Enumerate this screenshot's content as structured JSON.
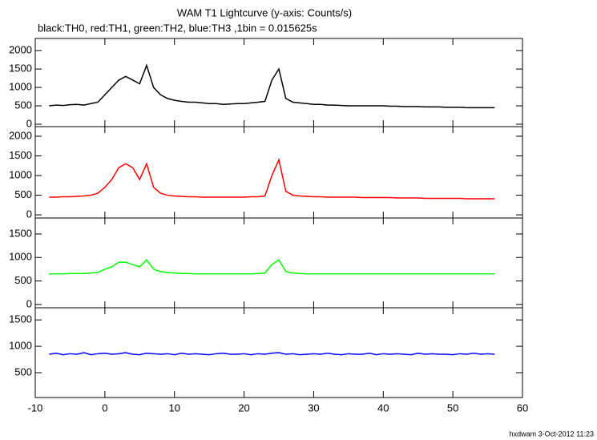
{
  "title": "WAM T1 Lightcurve (y-axis: Counts/s)",
  "subtitle": "black:TH0, red:TH1, green:TH2, blue:TH3 ,1bin = 0.015625s",
  "footer": "hxdwam  3-Oct-2012 11:23",
  "chart_data": [
    {
      "type": "line",
      "xlim": [
        -10,
        60
      ],
      "ylim": [
        -65,
        2330
      ],
      "yticks": [
        0,
        500,
        1000,
        1500,
        2000
      ],
      "x": [
        -8,
        -7,
        -6,
        -5,
        -4,
        -3,
        -2,
        -1,
        0,
        1,
        2,
        3,
        4,
        5,
        6,
        7,
        8,
        9,
        10,
        11,
        12,
        13,
        14,
        15,
        16,
        17,
        18,
        19,
        20,
        21,
        22,
        23,
        24,
        25,
        26,
        27,
        28,
        29,
        30,
        31,
        32,
        33,
        34,
        35,
        36,
        37,
        38,
        39,
        40,
        41,
        42,
        43,
        44,
        45,
        46,
        47,
        48,
        49,
        50,
        51,
        52,
        53,
        54,
        55,
        56
      ],
      "series": [
        {
          "name": "TH0",
          "color": "#000000",
          "values": [
            500,
            520,
            510,
            530,
            540,
            520,
            560,
            600,
            800,
            1000,
            1200,
            1300,
            1200,
            1100,
            1600,
            1000,
            800,
            700,
            650,
            620,
            600,
            600,
            580,
            560,
            560,
            540,
            550,
            560,
            560,
            580,
            600,
            620,
            1200,
            1500,
            700,
            600,
            580,
            560,
            540,
            540,
            520,
            520,
            510,
            500,
            500,
            500,
            500,
            500,
            500,
            490,
            490,
            480,
            480,
            480,
            470,
            470,
            470,
            460,
            460,
            460,
            450,
            450,
            450,
            450,
            450
          ]
        }
      ]
    },
    {
      "type": "line",
      "xlim": [
        -10,
        60
      ],
      "ylim": [
        -80,
        2245
      ],
      "yticks": [
        0,
        500,
        1000,
        1500,
        2000
      ],
      "x": [
        -8,
        -7,
        -6,
        -5,
        -4,
        -3,
        -2,
        -1,
        0,
        1,
        2,
        3,
        4,
        5,
        6,
        7,
        8,
        9,
        10,
        11,
        12,
        13,
        14,
        15,
        16,
        17,
        18,
        19,
        20,
        21,
        22,
        23,
        24,
        25,
        26,
        27,
        28,
        29,
        30,
        31,
        32,
        33,
        34,
        35,
        36,
        37,
        38,
        39,
        40,
        41,
        42,
        43,
        44,
        45,
        46,
        47,
        48,
        49,
        50,
        51,
        52,
        53,
        54,
        55,
        56
      ],
      "series": [
        {
          "name": "TH1",
          "color": "#ff0000",
          "values": [
            450,
            450,
            460,
            460,
            470,
            480,
            500,
            550,
            700,
            900,
            1200,
            1300,
            1200,
            900,
            1300,
            700,
            550,
            500,
            480,
            470,
            460,
            460,
            450,
            450,
            450,
            450,
            450,
            450,
            450,
            460,
            460,
            480,
            1000,
            1400,
            600,
            500,
            480,
            470,
            460,
            460,
            450,
            450,
            450,
            450,
            450,
            440,
            440,
            440,
            440,
            440,
            430,
            430,
            430,
            430,
            420,
            420,
            420,
            420,
            420,
            420,
            410,
            410,
            410,
            410,
            410
          ]
        }
      ]
    },
    {
      "type": "line",
      "xlim": [
        -10,
        60
      ],
      "ylim": [
        -70,
        1840
      ],
      "yticks": [
        0,
        500,
        1000,
        1500
      ],
      "x": [
        -8,
        -7,
        -6,
        -5,
        -4,
        -3,
        -2,
        -1,
        0,
        1,
        2,
        3,
        4,
        5,
        6,
        7,
        8,
        9,
        10,
        11,
        12,
        13,
        14,
        15,
        16,
        17,
        18,
        19,
        20,
        21,
        22,
        23,
        24,
        25,
        26,
        27,
        28,
        29,
        30,
        31,
        32,
        33,
        34,
        35,
        36,
        37,
        38,
        39,
        40,
        41,
        42,
        43,
        44,
        45,
        46,
        47,
        48,
        49,
        50,
        51,
        52,
        53,
        54,
        55,
        56
      ],
      "series": [
        {
          "name": "TH2",
          "color": "#00ff00",
          "values": [
            650,
            650,
            650,
            660,
            660,
            660,
            670,
            680,
            750,
            800,
            900,
            900,
            850,
            800,
            950,
            750,
            700,
            680,
            670,
            660,
            660,
            650,
            650,
            650,
            650,
            650,
            650,
            650,
            650,
            650,
            660,
            670,
            850,
            950,
            700,
            670,
            660,
            650,
            650,
            650,
            650,
            650,
            650,
            650,
            650,
            650,
            650,
            650,
            650,
            650,
            650,
            650,
            650,
            650,
            650,
            650,
            650,
            650,
            650,
            650,
            650,
            650,
            650,
            650,
            650
          ]
        }
      ]
    },
    {
      "type": "line",
      "xlim": [
        -10,
        60
      ],
      "ylim": [
        30,
        1730
      ],
      "yticks": [
        500,
        1000,
        1500
      ],
      "xticks": [
        -10,
        0,
        10,
        20,
        30,
        40,
        50,
        60
      ],
      "x": [
        -8,
        -7,
        -6,
        -5,
        -4,
        -3,
        -2,
        -1,
        0,
        1,
        2,
        3,
        4,
        5,
        6,
        7,
        8,
        9,
        10,
        11,
        12,
        13,
        14,
        15,
        16,
        17,
        18,
        19,
        20,
        21,
        22,
        23,
        24,
        25,
        26,
        27,
        28,
        29,
        30,
        31,
        32,
        33,
        34,
        35,
        36,
        37,
        38,
        39,
        40,
        41,
        42,
        43,
        44,
        45,
        46,
        47,
        48,
        49,
        50,
        51,
        52,
        53,
        54,
        55,
        56
      ],
      "series": [
        {
          "name": "TH3",
          "color": "#0000ff",
          "values": [
            850,
            870,
            840,
            860,
            850,
            880,
            840,
            860,
            870,
            850,
            860,
            880,
            850,
            840,
            870,
            860,
            850,
            860,
            840,
            870,
            850,
            860,
            850,
            840,
            860,
            870,
            850,
            850,
            860,
            840,
            860,
            850,
            870,
            880,
            850,
            860,
            840,
            850,
            860,
            850,
            870,
            850,
            840,
            860,
            850,
            850,
            870,
            840,
            860,
            850,
            860,
            850,
            840,
            870,
            850,
            860,
            850,
            850,
            840,
            860,
            850,
            870,
            850,
            860,
            850
          ]
        }
      ]
    }
  ]
}
